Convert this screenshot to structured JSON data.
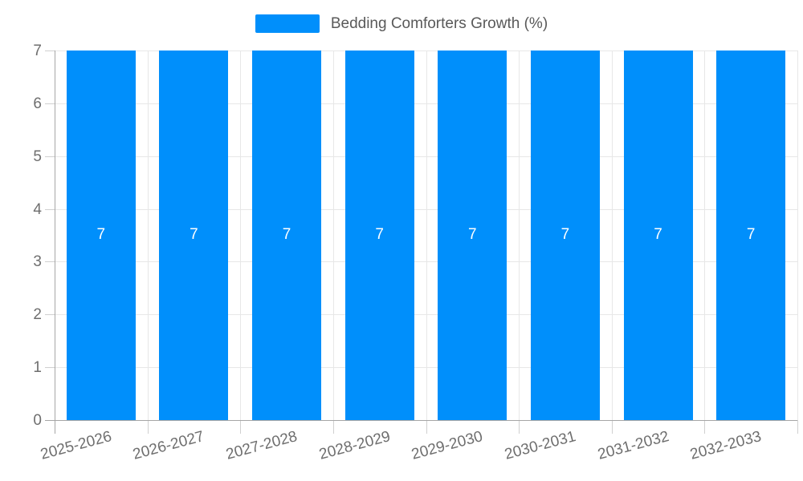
{
  "legend": {
    "position": "top",
    "items": [
      {
        "label": "Bedding Comforters Growth (%)",
        "swatch_color": "#008FFB"
      }
    ]
  },
  "chart_data": {
    "type": "bar",
    "title": "Bedding Comforters Growth (%)",
    "categories": [
      "2025-2026",
      "2026-2027",
      "2027-2028",
      "2028-2029",
      "2029-2030",
      "2030-2031",
      "2031-2032",
      "2032-2033"
    ],
    "series": [
      {
        "name": "Bedding Comforters Growth (%)",
        "color": "#008FFB",
        "values": [
          7,
          7,
          7,
          7,
          7,
          7,
          7,
          7
        ]
      }
    ],
    "data_labels": {
      "show": true,
      "color": "#ffffff",
      "values": [
        "7",
        "7",
        "7",
        "7",
        "7",
        "7",
        "7",
        "7"
      ]
    },
    "xlabel": "",
    "ylabel": "",
    "ylim": [
      0,
      7
    ],
    "yticks": [
      "0",
      "1",
      "2",
      "3",
      "4",
      "5",
      "6",
      "7"
    ],
    "grid": true,
    "legend_position": "top",
    "colors": {
      "bar": "#008FFB",
      "gridline": "#e7e7e7",
      "axis_line": "#a6a6a6",
      "tick_text": "#6e6e6e",
      "legend_text": "#595959",
      "data_label": "#ffffff"
    }
  }
}
